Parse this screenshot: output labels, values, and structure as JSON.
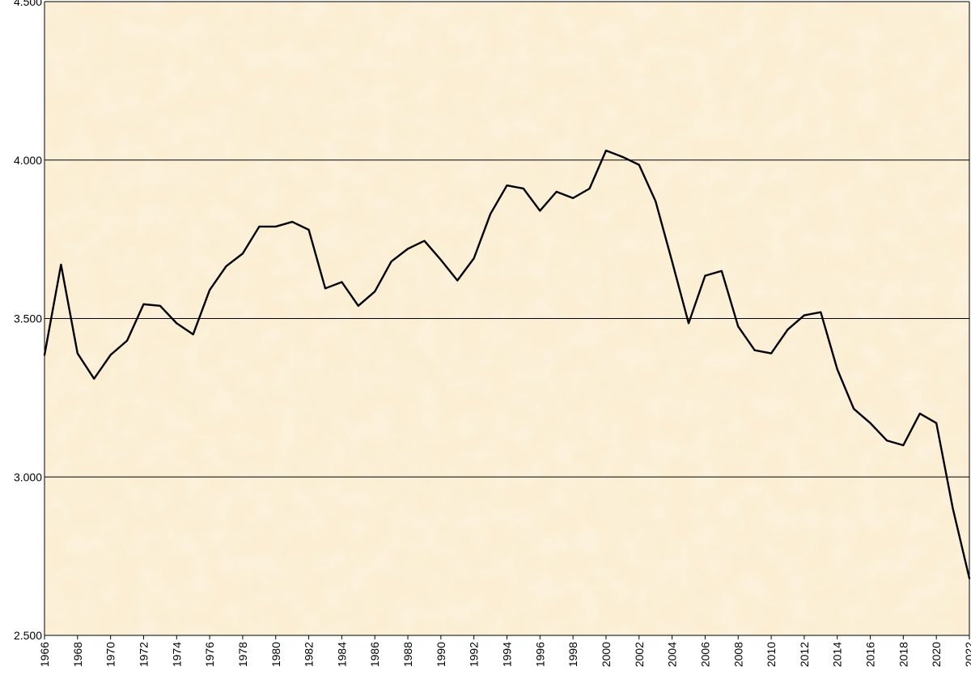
{
  "chart_data": {
    "type": "line",
    "title": "",
    "xlabel": "",
    "ylabel": "",
    "xlim": [
      1966,
      2022
    ],
    "ylim": [
      2500,
      4500
    ],
    "grid": true,
    "legend": "none",
    "y_ticks": [
      {
        "value": 2500,
        "label": "2.500"
      },
      {
        "value": 3000,
        "label": "3.000"
      },
      {
        "value": 3500,
        "label": "3.500"
      },
      {
        "value": 4000,
        "label": "4.000"
      },
      {
        "value": 4500,
        "label": "4.500"
      }
    ],
    "x_ticks": [
      1966,
      1968,
      1970,
      1972,
      1974,
      1976,
      1978,
      1980,
      1982,
      1984,
      1986,
      1988,
      1990,
      1992,
      1994,
      1996,
      1998,
      2000,
      2002,
      2004,
      2006,
      2008,
      2010,
      2012,
      2014,
      2016,
      2018,
      2020,
      2022
    ],
    "series": [
      {
        "color": "#000000",
        "x": [
          1966,
          1967,
          1968,
          1969,
          1970,
          1971,
          1972,
          1973,
          1974,
          1975,
          1976,
          1977,
          1978,
          1979,
          1980,
          1981,
          1982,
          1983,
          1984,
          1985,
          1986,
          1987,
          1988,
          1989,
          1990,
          1991,
          1992,
          1993,
          1994,
          1995,
          1996,
          1997,
          1998,
          1999,
          2000,
          2001,
          2002,
          2003,
          2004,
          2005,
          2006,
          2007,
          2008,
          2009,
          2010,
          2011,
          2012,
          2013,
          2014,
          2015,
          2016,
          2017,
          2018,
          2019,
          2020,
          2021,
          2022
        ],
        "values": [
          3385,
          3670,
          3390,
          3310,
          3385,
          3430,
          3545,
          3540,
          3485,
          3450,
          3590,
          3665,
          3705,
          3790,
          3790,
          3805,
          3780,
          3595,
          3615,
          3540,
          3585,
          3680,
          3720,
          3745,
          3685,
          3620,
          3690,
          3830,
          3920,
          3910,
          3840,
          3900,
          3880,
          3910,
          4030,
          4010,
          3985,
          3870,
          3680,
          3485,
          3635,
          3650,
          3475,
          3400,
          3390,
          3465,
          3510,
          3520,
          3340,
          3215,
          3170,
          3115,
          3100,
          3200,
          3170,
          2900,
          2680
        ]
      }
    ]
  },
  "colors": {
    "background": "#fbeed2",
    "background_speckle": "#fff7e6",
    "line": "#000000",
    "grid": "#000000"
  }
}
